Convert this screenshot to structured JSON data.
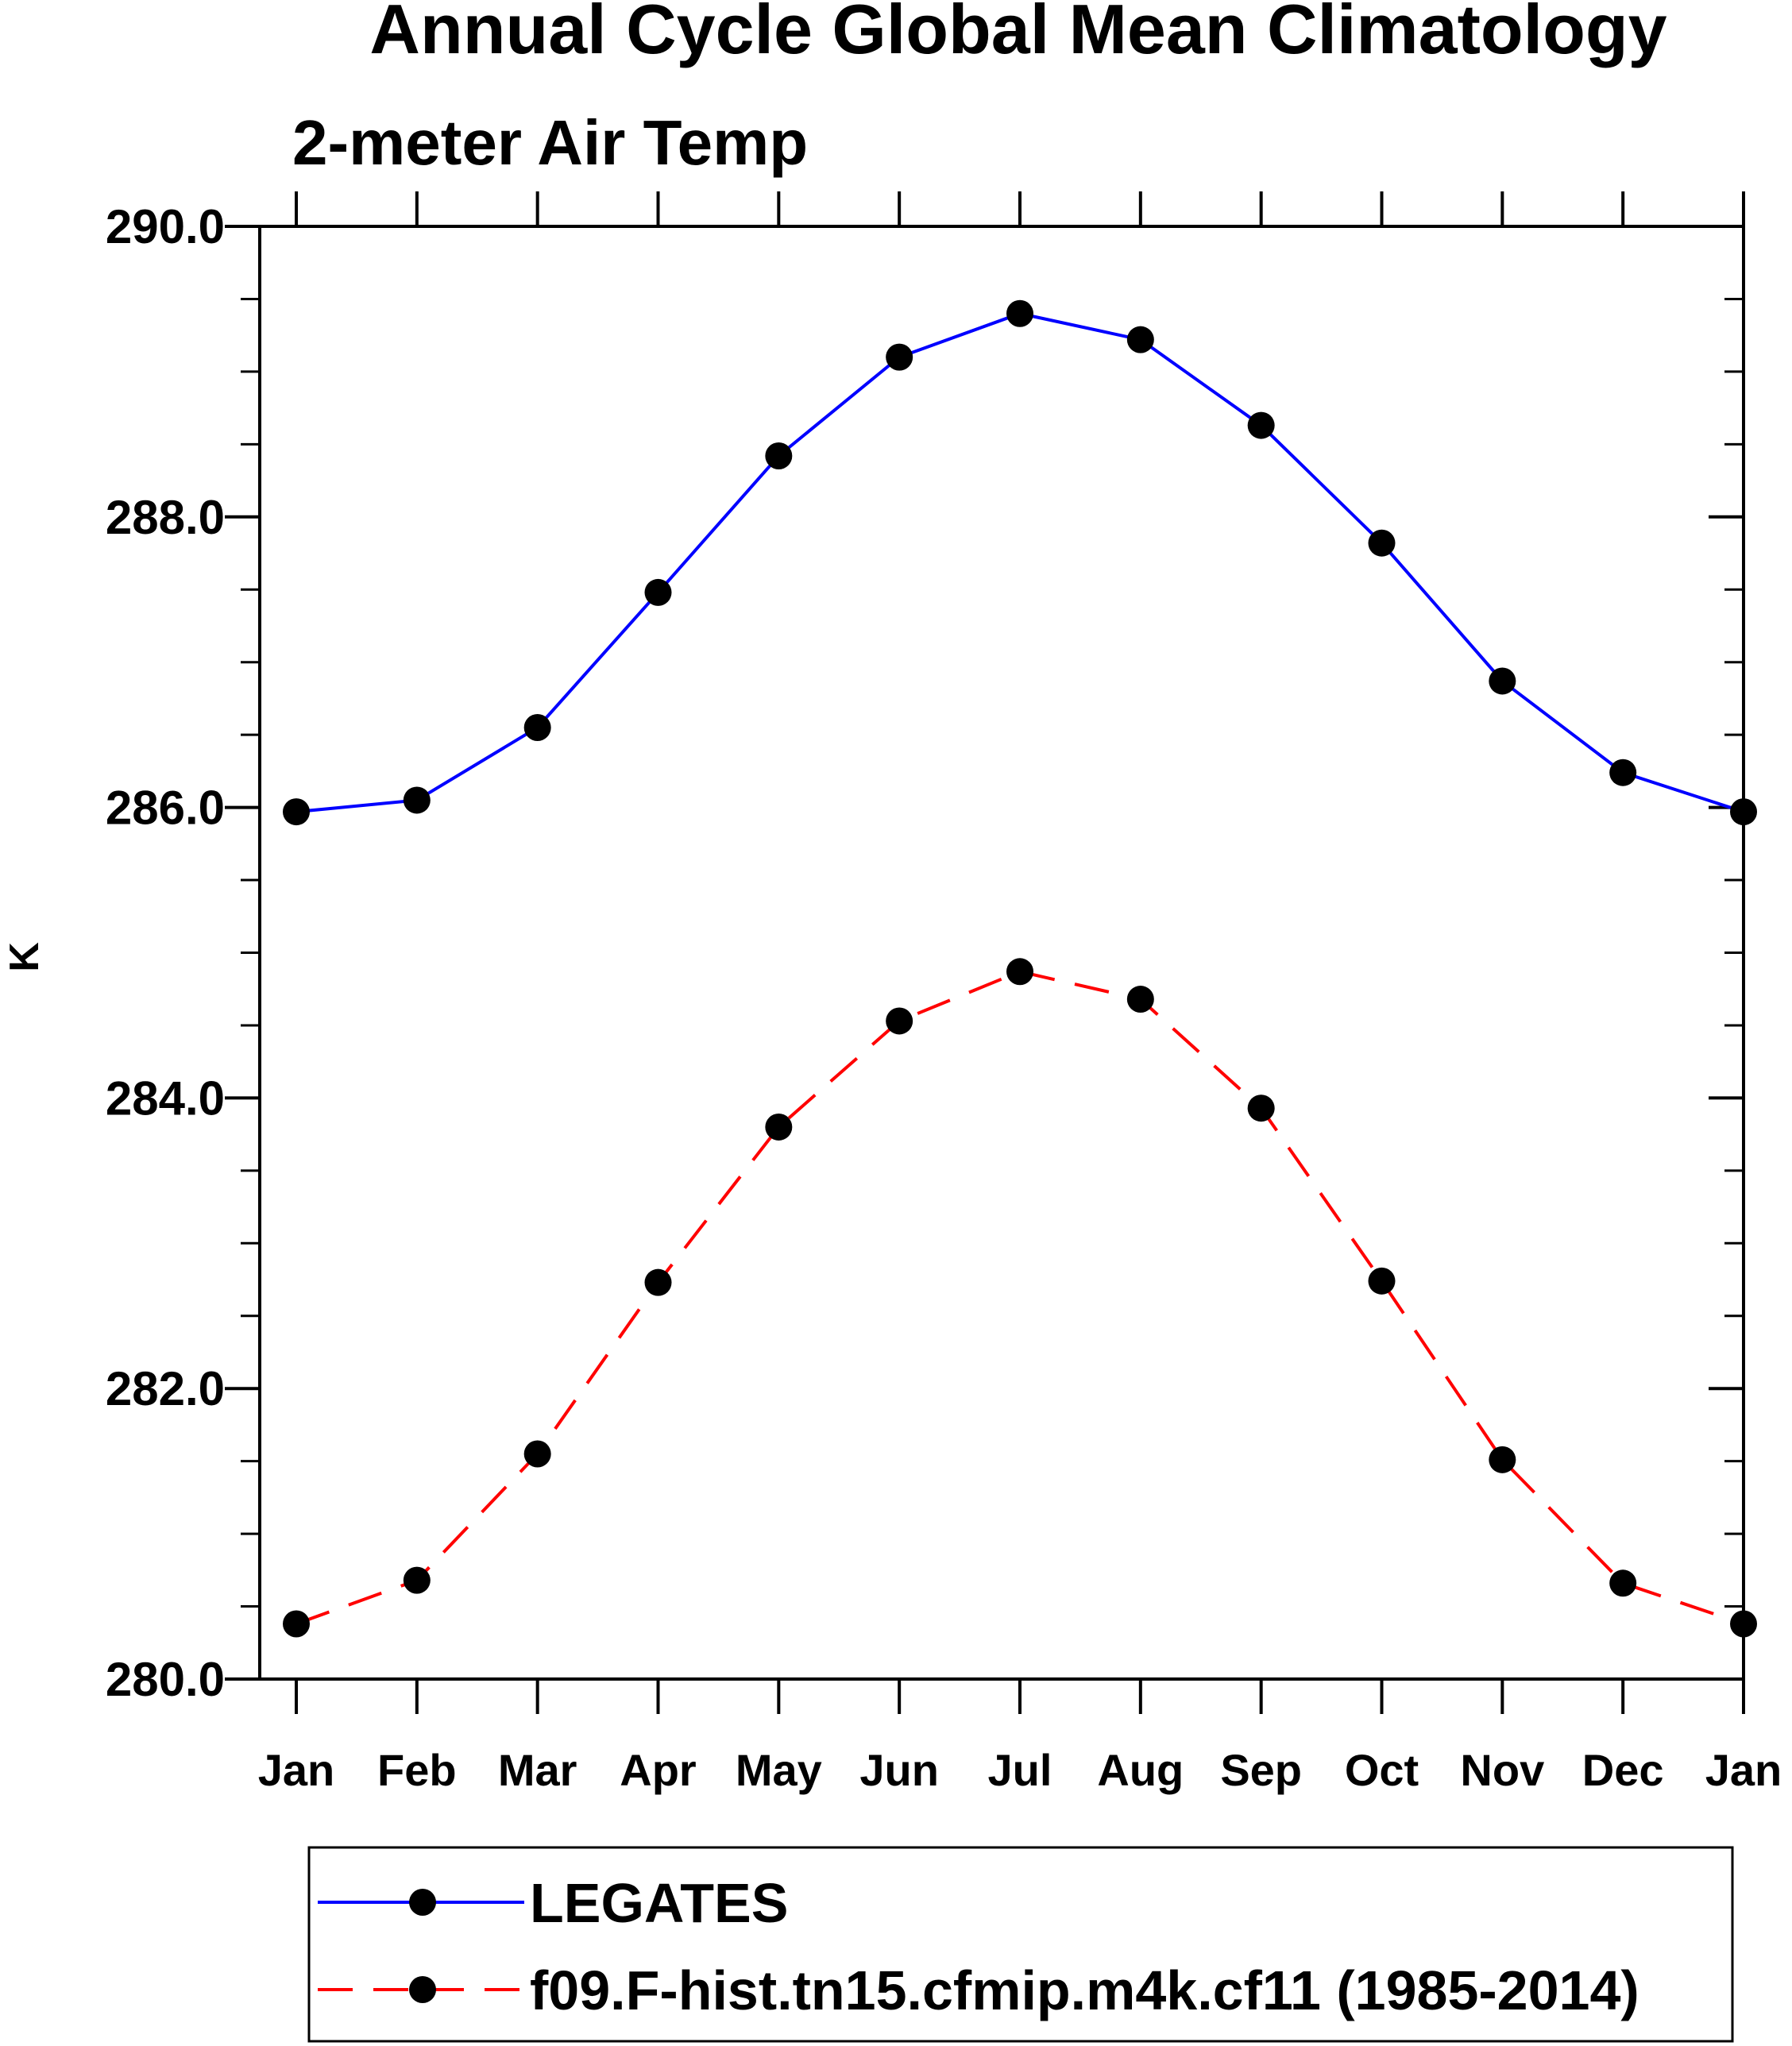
{
  "chart_data": {
    "type": "line",
    "title": "Annual Cycle Global Mean Climatology",
    "subtitle": "2-meter Air Temp",
    "xlabel": "",
    "ylabel": "K",
    "categories": [
      "Jan",
      "Feb",
      "Mar",
      "Apr",
      "May",
      "Jun",
      "Jul",
      "Aug",
      "Sep",
      "Oct",
      "Nov",
      "Dec",
      "Jan"
    ],
    "ylim": [
      280.0,
      290.0
    ],
    "yticks": [
      280.0,
      282.0,
      284.0,
      286.0,
      288.0,
      290.0
    ],
    "ytick_labels": [
      "280.0",
      "282.0",
      "284.0",
      "286.0",
      "288.0",
      "290.0"
    ],
    "y_minor_step": 0.5,
    "grid": false,
    "legend_position": "bottom",
    "series": [
      {
        "name": "LEGATES",
        "color": "#0000ff",
        "line_style": "solid",
        "marker": "filled-circle",
        "marker_color": "#000000",
        "values": [
          285.97,
          286.05,
          286.55,
          287.48,
          288.42,
          289.1,
          289.4,
          289.22,
          288.63,
          287.82,
          286.87,
          286.24,
          285.97
        ]
      },
      {
        "name": "f09.F-hist.tn15.cfmip.m4k.cf11 (1985-2014)",
        "color": "#ff0000",
        "line_style": "dashed",
        "marker": "filled-circle",
        "marker_color": "#000000",
        "values": [
          280.38,
          280.68,
          281.55,
          282.73,
          283.8,
          284.53,
          284.87,
          284.68,
          283.93,
          282.74,
          281.51,
          280.66,
          280.38
        ]
      }
    ]
  }
}
